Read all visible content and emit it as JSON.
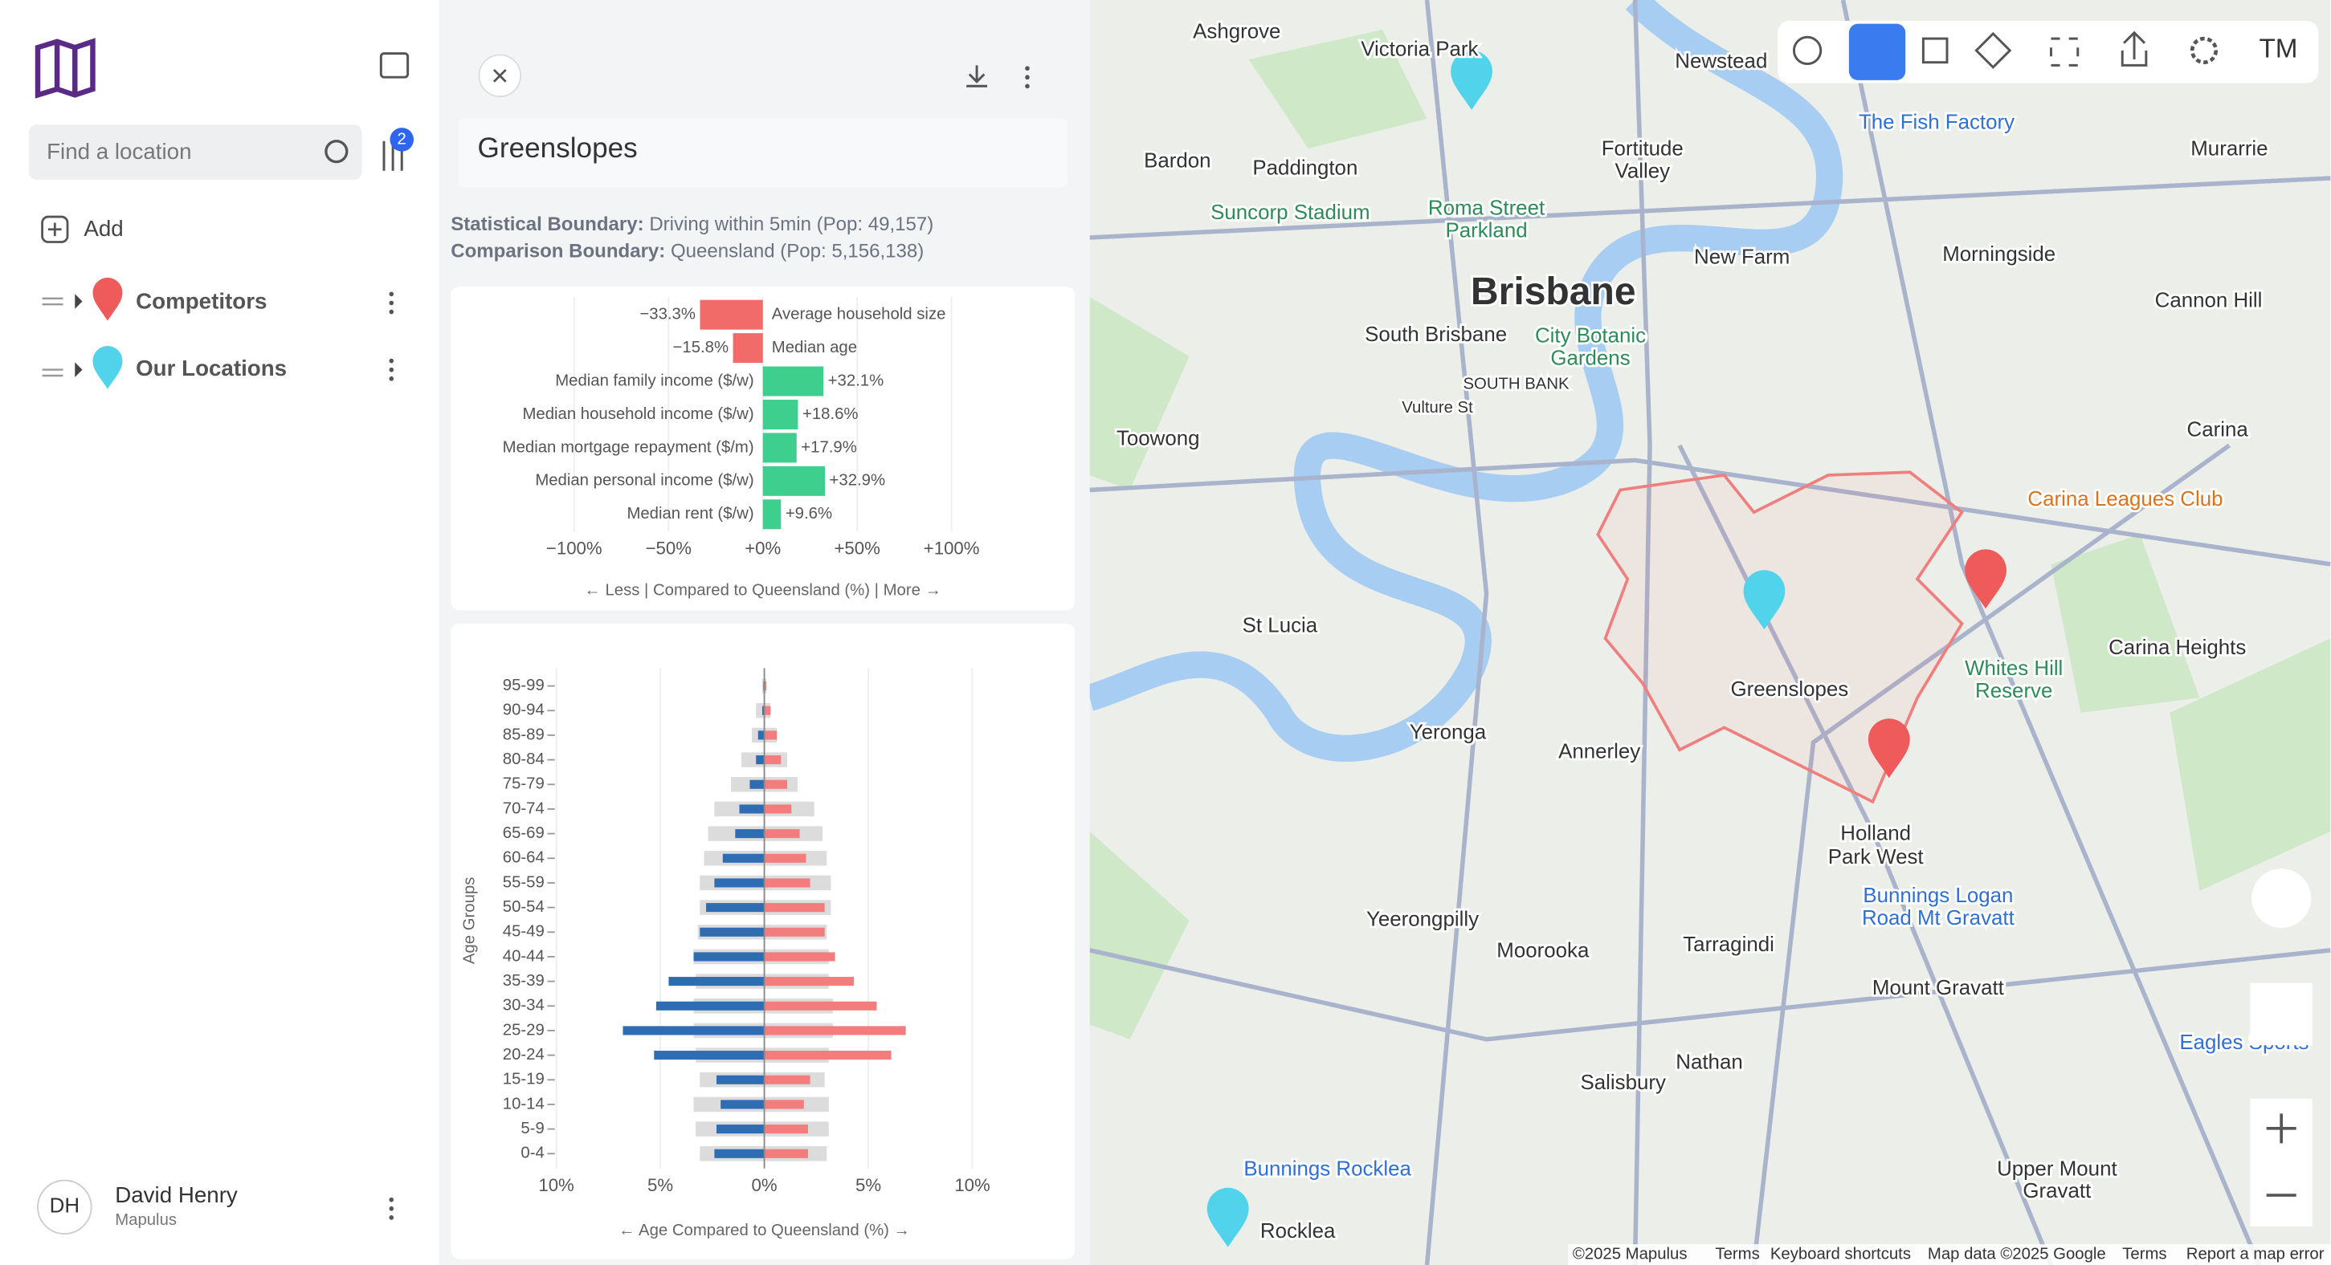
{
  "sidebar": {
    "search_placeholder": "Find a location",
    "filter_badge": "2",
    "add": "Add",
    "layers": [
      "Competitors",
      "Our Locations"
    ],
    "user": {
      "initials": "DH",
      "name": "David Henry",
      "org": "Mapulus"
    }
  },
  "panel": {
    "title": "Greenslopes",
    "stats": [
      {
        "label": "Statistical Boundary:",
        "text": "Driving within 5min (Pop: 49,157)"
      },
      {
        "label": "Comparison Boundary:",
        "text": "Queensland (Pop: 5,156,138)"
      }
    ]
  },
  "chart_data": [
    {
      "type": "bar",
      "orientation": "horizontal",
      "categories": [
        "Average household size",
        "Median age",
        "Median family income ($/w)",
        "Median household income ($/w)",
        "Median mortgage repayment ($/m)",
        "Median personal income ($/w)",
        "Median rent ($/w)"
      ],
      "values": [
        -33.3,
        -15.8,
        32.1,
        18.6,
        17.9,
        32.9,
        9.6
      ],
      "value_labels": [
        "−33.3%",
        "−15.8%",
        "+32.1%",
        "+18.6%",
        "+17.9%",
        "+32.9%",
        "+9.6%"
      ],
      "colors": {
        "negative": "#f26b6b",
        "positive": "#3ecf8e"
      },
      "xlim": [
        -100,
        100
      ],
      "xticks": [
        {
          "value": -100,
          "label": "−100%"
        },
        {
          "value": -50,
          "label": "−50%"
        },
        {
          "value": 0,
          "label": "+0%"
        },
        {
          "value": 50,
          "label": "+50%"
        },
        {
          "value": 100,
          "label": "+100%"
        }
      ],
      "xlabel": "← Less | Compared to Queensland (%) | More →",
      "grid": true
    },
    {
      "type": "pyramid",
      "categories": [
        "0-4",
        "5-9",
        "10-14",
        "15-19",
        "20-24",
        "25-29",
        "30-34",
        "35-39",
        "40-44",
        "45-49",
        "50-54",
        "55-59",
        "60-64",
        "65-69",
        "70-74",
        "75-79",
        "80-84",
        "85-89",
        "90-94",
        "95-99"
      ],
      "series": [
        {
          "color": "#dcdcdc",
          "values": [
            -3.1,
            -3.3,
            -3.4,
            -3.1,
            -3.3,
            -3.4,
            -3.4,
            -3.3,
            -3.4,
            -3.2,
            -3.1,
            -3.1,
            -2.9,
            -2.7,
            -2.4,
            -1.6,
            -1.1,
            -0.6,
            -0.4,
            -0.1
          ]
        },
        {
          "color": "#dcdcdc",
          "values": [
            3.0,
            3.1,
            3.1,
            2.9,
            3.1,
            3.3,
            3.3,
            3.1,
            3.1,
            3.0,
            3.2,
            3.2,
            3.0,
            2.8,
            2.4,
            1.6,
            1.1,
            0.6,
            0.3,
            0.1
          ]
        },
        {
          "color": "#2e6db4",
          "values": [
            -2.4,
            -2.3,
            -2.1,
            -2.3,
            -5.3,
            -6.8,
            -5.2,
            -4.6,
            -3.4,
            -3.1,
            -2.8,
            -2.4,
            -2.0,
            -1.4,
            -1.2,
            -0.7,
            -0.4,
            -0.3,
            -0.1,
            -0.05
          ]
        },
        {
          "color": "#f47c7c",
          "values": [
            2.1,
            2.1,
            1.9,
            2.2,
            6.1,
            6.8,
            5.4,
            4.3,
            3.4,
            2.9,
            2.9,
            2.2,
            2.0,
            1.7,
            1.3,
            1.1,
            0.8,
            0.6,
            0.3,
            0.1
          ]
        }
      ],
      "xlim": [
        -10,
        10
      ],
      "xticks": [
        {
          "value": -10,
          "label": "10%"
        },
        {
          "value": -5,
          "label": "5%"
        },
        {
          "value": 0,
          "label": "0%"
        },
        {
          "value": 5,
          "label": "5%"
        },
        {
          "value": 10,
          "label": "10%"
        }
      ],
      "xlabel": "← Age Compared to Queensland (%) →",
      "ylabel": "Age Groups",
      "grid": true
    }
  ],
  "map": {
    "labels": [
      "Ashgrove",
      "Victoria Park",
      "Newstead",
      "Bardon",
      "Paddington",
      "Fortitude",
      "Valley",
      "The Fish Factory",
      "Murarrie",
      "Suncorp Stadium",
      "Roma Street",
      "Parkland",
      "Brisbane",
      "New Farm",
      "Morningside",
      "Cannon Hill",
      "South Brisbane",
      "City Botanic",
      "Gardens",
      "SOUTH BANK",
      "Vulture St",
      "Toowong",
      "Carina",
      "Carina Leagues Club",
      "St Lucia",
      "Greenslopes",
      "Whites Hill",
      "Reserve",
      "Carina Heights",
      "Yeronga",
      "Annerley",
      "Holland",
      "Park West",
      "Yeerongpilly",
      "Moorooka",
      "Tarragindi",
      "Bunnings Logan",
      "Road Mt Gravatt",
      "Mount Gravatt",
      "Nathan",
      "Salisbury",
      "Bunnings Rocklea",
      "Rocklea",
      "Upper Mount",
      "Gravatt",
      "Eagles Sports"
    ],
    "toolbar_user": "TM",
    "attribution": [
      "©2025 Mapulus",
      "Terms",
      "Keyboard shortcuts",
      "Map data ©2025 Google",
      "Terms",
      "Report a map error"
    ]
  }
}
